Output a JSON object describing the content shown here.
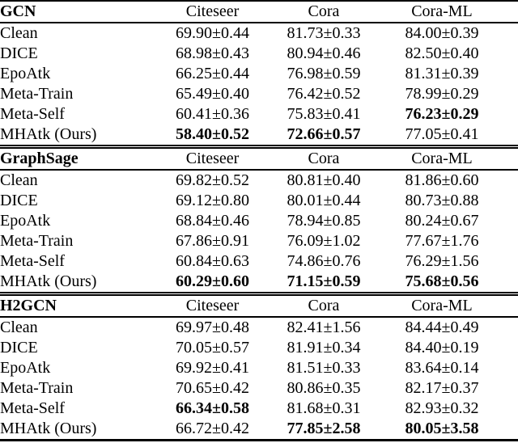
{
  "colors": {
    "text": "#000000",
    "rule": "#000000",
    "background": "#ffffff"
  },
  "table": {
    "columns": [
      "Citeseer",
      "Cora",
      "Cora-ML"
    ],
    "sections": [
      {
        "model": "GCN",
        "rows": [
          {
            "method": "Clean",
            "values": [
              "69.90±0.44",
              "81.73±0.33",
              "84.00±0.39"
            ],
            "bold": []
          },
          {
            "method": "DICE",
            "values": [
              "68.98±0.43",
              "80.94±0.46",
              "82.50±0.40"
            ],
            "bold": []
          },
          {
            "method": "EpoAtk",
            "values": [
              "66.25±0.44",
              "76.98±0.59",
              "81.31±0.39"
            ],
            "bold": []
          },
          {
            "method": "Meta-Train",
            "values": [
              "65.49±0.40",
              "76.42±0.52",
              "78.99±0.29"
            ],
            "bold": []
          },
          {
            "method": "Meta-Self",
            "values": [
              "60.41±0.36",
              "75.83±0.41",
              "76.23±0.29"
            ],
            "bold": [
              2
            ]
          },
          {
            "method": "MHAtk (Ours)",
            "values": [
              "58.40±0.52",
              "72.66±0.57",
              "77.05±0.41"
            ],
            "bold": [
              0,
              1
            ]
          }
        ]
      },
      {
        "model": "GraphSage",
        "rows": [
          {
            "method": "Clean",
            "values": [
              "69.82±0.52",
              "80.81±0.40",
              "81.86±0.60"
            ],
            "bold": []
          },
          {
            "method": "DICE",
            "values": [
              "69.12±0.80",
              "80.01±0.44",
              "80.73±0.88"
            ],
            "bold": []
          },
          {
            "method": "EpoAtk",
            "values": [
              "68.84±0.46",
              "78.94±0.85",
              "80.24±0.67"
            ],
            "bold": []
          },
          {
            "method": "Meta-Train",
            "values": [
              "67.86±0.91",
              "76.09±1.02",
              "77.67±1.76"
            ],
            "bold": []
          },
          {
            "method": "Meta-Self",
            "values": [
              "60.84±0.63",
              "74.86±0.76",
              "76.29±1.56"
            ],
            "bold": []
          },
          {
            "method": "MHAtk (Ours)",
            "values": [
              "60.29±0.60",
              "71.15±0.59",
              "75.68±0.56"
            ],
            "bold": [
              0,
              1,
              2
            ]
          }
        ]
      },
      {
        "model": "H2GCN",
        "rows": [
          {
            "method": "Clean",
            "values": [
              "69.97±0.48",
              "82.41±1.56",
              "84.44±0.49"
            ],
            "bold": []
          },
          {
            "method": "DICE",
            "values": [
              "70.05±0.57",
              "81.91±0.34",
              "84.40±0.19"
            ],
            "bold": []
          },
          {
            "method": "EpoAtk",
            "values": [
              "69.92±0.41",
              "81.51±0.33",
              "83.64±0.14"
            ],
            "bold": []
          },
          {
            "method": "Meta-Train",
            "values": [
              "70.65±0.42",
              "80.86±0.35",
              "82.17±0.37"
            ],
            "bold": []
          },
          {
            "method": "Meta-Self",
            "values": [
              "66.34±0.58",
              "81.68±0.31",
              "82.93±0.32"
            ],
            "bold": [
              0
            ]
          },
          {
            "method": "MHAtk (Ours)",
            "values": [
              "66.72±0.42",
              "77.85±2.58",
              "80.05±3.58"
            ],
            "bold": [
              1,
              2
            ]
          }
        ]
      }
    ]
  }
}
